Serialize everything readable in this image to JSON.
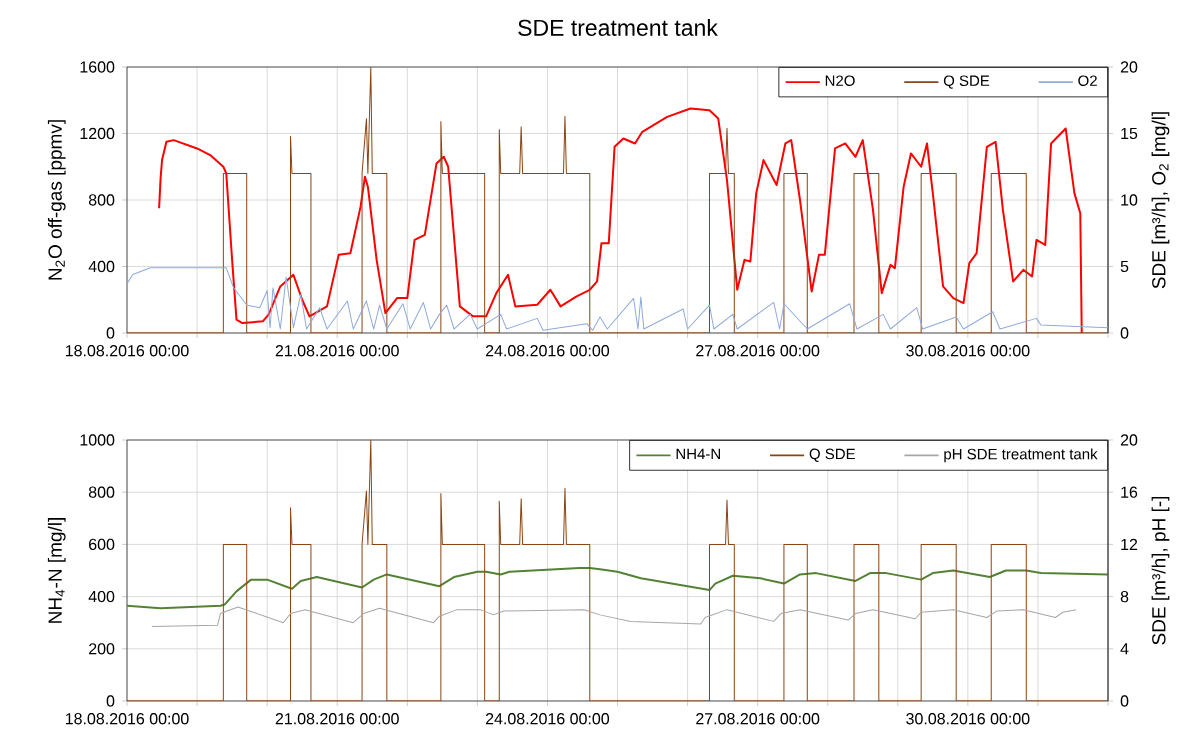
{
  "chart_data": [
    {
      "type": "line",
      "title": "SDE treatment tank",
      "ylabel": "N$_{2}$O off-gas [ppmv]",
      "y2label": "SDE [m³/h], O$_{2}$ [mg/l]",
      "xlim": [
        "2016-08-18T00:00",
        "2016-09-01T00:00"
      ],
      "xticks": [
        {
          "value": "2016-08-18T00:00",
          "label": "18.08.2016 00:00"
        },
        {
          "value": "2016-08-19T00:00",
          "label": null
        },
        {
          "value": "2016-08-20T00:00",
          "label": null
        },
        {
          "value": "2016-08-21T00:00",
          "label": "21.08.2016 00:00"
        },
        {
          "value": "2016-08-22T00:00",
          "label": null
        },
        {
          "value": "2016-08-23T00:00",
          "label": null
        },
        {
          "value": "2016-08-24T00:00",
          "label": "24.08.2016 00:00"
        },
        {
          "value": "2016-08-25T00:00",
          "label": null
        },
        {
          "value": "2016-08-26T00:00",
          "label": null
        },
        {
          "value": "2016-08-27T00:00",
          "label": "27.08.2016 00:00"
        },
        {
          "value": "2016-08-28T00:00",
          "label": null
        },
        {
          "value": "2016-08-29T00:00",
          "label": null
        },
        {
          "value": "2016-08-30T00:00",
          "label": "30.08.2016 00:00"
        },
        {
          "value": "2016-08-31T00:00",
          "label": null
        },
        {
          "value": "2016-09-01T00:00",
          "label": null
        }
      ],
      "ylim": [
        0,
        1600
      ],
      "yticks": [
        0,
        400,
        800,
        1200,
        1600
      ],
      "y2lim": [
        0,
        20
      ],
      "y2ticks": [
        0,
        5,
        10,
        15,
        20
      ],
      "grid": true,
      "legend": "top right",
      "series": [
        {
          "name": "N2O",
          "color": "#ff0000",
          "x": [
            "2016-08-18T11:00",
            "2016-08-18T11:30",
            "2016-08-18T12:00",
            "2016-08-18T13:30",
            "2016-08-18T16:00",
            "2016-08-19T00:00",
            "2016-08-19T04:30",
            "2016-08-19T09:00",
            "2016-08-19T10:00",
            "2016-08-19T12:00",
            "2016-08-19T13:30",
            "2016-08-19T15:30",
            "2016-08-19T22:30",
            "2016-08-20T00:30",
            "2016-08-20T04:30",
            "2016-08-20T09:00",
            "2016-08-20T12:00",
            "2016-08-20T14:30",
            "2016-08-20T20:30",
            "2016-08-21T00:30",
            "2016-08-21T04:30",
            "2016-08-21T08:00",
            "2016-08-21T09:30",
            "2016-08-21T10:30",
            "2016-08-21T13:30",
            "2016-08-21T16:30",
            "2016-08-21T20:30",
            "2016-08-22T00:00",
            "2016-08-22T02:30",
            "2016-08-22T06:00",
            "2016-08-22T10:00",
            "2016-08-22T12:30",
            "2016-08-22T14:00",
            "2016-08-22T18:00",
            "2016-08-22T22:30",
            "2016-08-23T03:00",
            "2016-08-23T06:30",
            "2016-08-23T10:30",
            "2016-08-23T13:00",
            "2016-08-23T20:30",
            "2016-08-24T01:00",
            "2016-08-24T04:30",
            "2016-08-24T10:00",
            "2016-08-24T14:30",
            "2016-08-24T17:00",
            "2016-08-24T18:30",
            "2016-08-24T21:00",
            "2016-08-24T23:00",
            "2016-08-25T02:00",
            "2016-08-25T06:00",
            "2016-08-25T08:30",
            "2016-08-25T17:00",
            "2016-08-26T01:00",
            "2016-08-26T07:30",
            "2016-08-26T10:30",
            "2016-08-26T13:30",
            "2016-08-26T17:00",
            "2016-08-26T19:30",
            "2016-08-26T21:30",
            "2016-08-26T23:30",
            "2016-08-27T02:00",
            "2016-08-27T06:30",
            "2016-08-27T09:30",
            "2016-08-27T11:30",
            "2016-08-27T14:30",
            "2016-08-27T18:30",
            "2016-08-27T21:00",
            "2016-08-27T23:00",
            "2016-08-28T02:30",
            "2016-08-28T06:00",
            "2016-08-28T09:30",
            "2016-08-28T12:00",
            "2016-08-28T15:30",
            "2016-08-28T18:30",
            "2016-08-28T21:30",
            "2016-08-28T23:00",
            "2016-08-29T02:00",
            "2016-08-29T04:30",
            "2016-08-29T08:00",
            "2016-08-29T10:00",
            "2016-08-29T12:00",
            "2016-08-29T15:30",
            "2016-08-29T19:00",
            "2016-08-29T22:30",
            "2016-08-30T00:30",
            "2016-08-30T03:00",
            "2016-08-30T06:30",
            "2016-08-30T09:30",
            "2016-08-30T12:00",
            "2016-08-30T15:30",
            "2016-08-30T19:00",
            "2016-08-30T22:00",
            "2016-08-30T23:30",
            "2016-08-31T02:30",
            "2016-08-31T04:30",
            "2016-08-31T09:30",
            "2016-08-31T12:30",
            "2016-08-31T14:30",
            "2016-08-31T15:00"
          ],
          "values": [
            750,
            930,
            1040,
            1150,
            1160,
            1110,
            1070,
            1000,
            960,
            440,
            80,
            60,
            70,
            110,
            280,
            350,
            200,
            100,
            160,
            470,
            480,
            760,
            940,
            880,
            440,
            120,
            210,
            210,
            560,
            590,
            1020,
            1060,
            1000,
            160,
            100,
            100,
            240,
            350,
            160,
            170,
            260,
            160,
            220,
            260,
            310,
            540,
            540,
            1120,
            1170,
            1140,
            1210,
            1300,
            1350,
            1340,
            1290,
            920,
            260,
            440,
            430,
            840,
            1040,
            890,
            1140,
            1160,
            800,
            250,
            470,
            470,
            1110,
            1140,
            1060,
            1160,
            740,
            240,
            410,
            390,
            880,
            1080,
            1000,
            1140,
            840,
            280,
            210,
            180,
            420,
            480,
            1120,
            1150,
            740,
            310,
            380,
            340,
            560,
            530,
            1140,
            1230,
            840,
            720,
            0
          ]
        },
        {
          "name": "Q SDE",
          "color": "#8b4513",
          "axis": "y2",
          "x": [
            "2016-08-18T00:00",
            "2016-08-19T09:00",
            "2016-08-19T09:00",
            "2016-08-19T17:00",
            "2016-08-19T17:00",
            "2016-08-20T08:00",
            "2016-08-20T08:00",
            "2016-08-20T08:30",
            "2016-08-20T15:00",
            "2016-08-20T15:00",
            "2016-08-21T08:30",
            "2016-08-21T08:30",
            "2016-08-21T10:00",
            "2016-08-21T10:30",
            "2016-08-21T11:30",
            "2016-08-21T12:00",
            "2016-08-21T17:00",
            "2016-08-21T17:00",
            "2016-08-22T11:30",
            "2016-08-22T11:30",
            "2016-08-22T12:00",
            "2016-08-23T02:30",
            "2016-08-23T02:30",
            "2016-08-23T07:30",
            "2016-08-23T07:30",
            "2016-08-23T08:00",
            "2016-08-23T14:30",
            "2016-08-23T15:00",
            "2016-08-23T15:30",
            "2016-08-24T05:30",
            "2016-08-24T06:00",
            "2016-08-24T06:30",
            "2016-08-24T14:30",
            "2016-08-24T14:30",
            "2016-08-26T07:30",
            "2016-08-26T07:30",
            "2016-08-26T13:00",
            "2016-08-26T13:30",
            "2016-08-26T14:00",
            "2016-08-26T16:00",
            "2016-08-26T16:00",
            "2016-08-27T09:00",
            "2016-08-27T09:00",
            "2016-08-27T17:00",
            "2016-08-27T17:00",
            "2016-08-28T09:00",
            "2016-08-28T09:00",
            "2016-08-28T17:30",
            "2016-08-28T17:30",
            "2016-08-29T08:00",
            "2016-08-29T08:00",
            "2016-08-29T20:00",
            "2016-08-29T20:00",
            "2016-08-30T08:00",
            "2016-08-30T08:00",
            "2016-08-30T20:00",
            "2016-08-30T20:00",
            "2016-09-01T00:00"
          ],
          "values": [
            0,
            0,
            12,
            12,
            0,
            0,
            14.8,
            12,
            12,
            0,
            0,
            12,
            16.1,
            12,
            20,
            12,
            12,
            0,
            0,
            15.9,
            12,
            12,
            0,
            0,
            15.3,
            12,
            12,
            15.5,
            12,
            12,
            16.3,
            12,
            12,
            0,
            0,
            12,
            12,
            15.4,
            12,
            12,
            0,
            0,
            12,
            12,
            0,
            0,
            12,
            12,
            0,
            0,
            12,
            12,
            0,
            0,
            12,
            12,
            0,
            0
          ]
        },
        {
          "name": "O2",
          "color": "#8eaadb",
          "axis": "y2",
          "x": [
            "2016-08-18T00:00",
            "2016-08-18T02:00",
            "2016-08-18T08:00",
            "2016-08-19T10:00",
            "2016-08-19T12:30",
            "2016-08-19T17:00",
            "2016-08-19T21:30",
            "2016-08-20T00:00",
            "2016-08-20T01:00",
            "2016-08-20T02:00",
            "2016-08-20T04:30",
            "2016-08-20T06:30",
            "2016-08-20T09:00",
            "2016-08-20T11:30",
            "2016-08-20T13:30",
            "2016-08-20T18:00",
            "2016-08-20T20:30",
            "2016-08-21T03:30",
            "2016-08-21T05:30",
            "2016-08-21T10:00",
            "2016-08-21T12:30",
            "2016-08-21T14:30",
            "2016-08-21T17:00",
            "2016-08-21T22:30",
            "2016-08-22T01:00",
            "2016-08-22T05:30",
            "2016-08-22T08:00",
            "2016-08-22T11:00",
            "2016-08-22T13:30",
            "2016-08-22T16:00",
            "2016-08-22T21:30",
            "2016-08-23T00:00",
            "2016-08-23T08:00",
            "2016-08-23T10:00",
            "2016-08-23T20:30",
            "2016-08-23T22:30",
            "2016-08-24T13:30",
            "2016-08-24T15:30",
            "2016-08-24T18:00",
            "2016-08-24T20:30",
            "2016-08-25T05:30",
            "2016-08-25T07:00",
            "2016-08-25T08:00",
            "2016-08-25T09:00",
            "2016-08-25T22:30",
            "2016-08-26T00:00",
            "2016-08-26T07:30",
            "2016-08-26T09:00",
            "2016-08-26T15:30",
            "2016-08-26T17:00",
            "2016-08-27T05:30",
            "2016-08-27T07:30",
            "2016-08-27T09:00",
            "2016-08-27T17:00",
            "2016-08-28T07:30",
            "2016-08-28T10:00",
            "2016-08-28T19:00",
            "2016-08-28T21:30",
            "2016-08-29T06:30",
            "2016-08-29T08:30",
            "2016-08-29T20:00",
            "2016-08-29T22:30",
            "2016-08-30T08:30",
            "2016-08-30T11:00",
            "2016-08-30T23:30",
            "2016-08-31T01:00",
            "2016-09-01T00:00"
          ],
          "values": [
            3.7,
            4.4,
            4.9,
            4.9,
            3.4,
            2.1,
            1.9,
            3.2,
            0.4,
            3.4,
            0.3,
            4.2,
            0.4,
            2.9,
            0.3,
            1.9,
            0.3,
            2.4,
            0.3,
            2.4,
            0.3,
            2.1,
            0.3,
            2.2,
            0.3,
            2.3,
            0.3,
            1.4,
            2.1,
            0.3,
            1.4,
            0.3,
            1.4,
            0.3,
            1.1,
            0.2,
            0.7,
            0.2,
            1.2,
            0.3,
            2.6,
            0.3,
            2.7,
            0.3,
            1.8,
            0.3,
            2.1,
            0.3,
            1.4,
            0.3,
            2.3,
            0.3,
            2.2,
            0.3,
            2.2,
            0.3,
            1.4,
            0.3,
            1.9,
            0.3,
            1.2,
            0.3,
            1.6,
            0.3,
            1.1,
            0.6,
            0.4
          ]
        }
      ]
    },
    {
      "type": "line",
      "ylabel": "NH$_{4}$-N [mg/l]",
      "y2label": "SDE [m³/h], pH [-]",
      "xlim": [
        "2016-08-18T00:00",
        "2016-09-01T00:00"
      ],
      "xticks": [
        {
          "value": "2016-08-18T00:00",
          "label": "18.08.2016 00:00"
        },
        {
          "value": "2016-08-19T00:00",
          "label": null
        },
        {
          "value": "2016-08-20T00:00",
          "label": null
        },
        {
          "value": "2016-08-21T00:00",
          "label": "21.08.2016 00:00"
        },
        {
          "value": "2016-08-22T00:00",
          "label": null
        },
        {
          "value": "2016-08-23T00:00",
          "label": null
        },
        {
          "value": "2016-08-24T00:00",
          "label": "24.08.2016 00:00"
        },
        {
          "value": "2016-08-25T00:00",
          "label": null
        },
        {
          "value": "2016-08-26T00:00",
          "label": null
        },
        {
          "value": "2016-08-27T00:00",
          "label": "27.08.2016 00:00"
        },
        {
          "value": "2016-08-28T00:00",
          "label": null
        },
        {
          "value": "2016-08-29T00:00",
          "label": null
        },
        {
          "value": "2016-08-30T00:00",
          "label": "30.08.2016 00:00"
        },
        {
          "value": "2016-08-31T00:00",
          "label": null
        },
        {
          "value": "2016-09-01T00:00",
          "label": null
        }
      ],
      "ylim": [
        0,
        1000
      ],
      "yticks": [
        0,
        200,
        400,
        600,
        800,
        1000
      ],
      "y2lim": [
        0,
        20
      ],
      "y2ticks": [
        0,
        4,
        8,
        12,
        16,
        20
      ],
      "grid": true,
      "legend": "top right",
      "series": [
        {
          "name": "NH4-N",
          "color": "#548235",
          "x": [
            "2016-08-18T00:00",
            "2016-08-18T11:30",
            "2016-08-19T08:00",
            "2016-08-19T09:30",
            "2016-08-19T13:30",
            "2016-08-19T18:30",
            "2016-08-20T00:00",
            "2016-08-20T08:30",
            "2016-08-20T11:30",
            "2016-08-20T17:00",
            "2016-08-21T08:30",
            "2016-08-21T12:30",
            "2016-08-21T17:00",
            "2016-08-22T11:00",
            "2016-08-22T16:00",
            "2016-08-23T00:00",
            "2016-08-23T03:00",
            "2016-08-23T08:00",
            "2016-08-23T11:00",
            "2016-08-24T11:00",
            "2016-08-24T14:30",
            "2016-08-24T18:00",
            "2016-08-25T00:00",
            "2016-08-25T08:00",
            "2016-08-26T07:30",
            "2016-08-26T09:30",
            "2016-08-26T15:30",
            "2016-08-27T01:00",
            "2016-08-27T09:00",
            "2016-08-27T14:30",
            "2016-08-27T20:00",
            "2016-08-28T09:30",
            "2016-08-28T14:30",
            "2016-08-28T20:00",
            "2016-08-29T08:00",
            "2016-08-29T12:00",
            "2016-08-29T19:00",
            "2016-08-30T07:30",
            "2016-08-30T13:00",
            "2016-08-30T20:00",
            "2016-08-31T01:00",
            "2016-09-01T00:00"
          ],
          "values": [
            365,
            355,
            365,
            370,
            420,
            465,
            465,
            430,
            460,
            475,
            435,
            465,
            485,
            440,
            475,
            495,
            495,
            485,
            495,
            510,
            510,
            505,
            495,
            470,
            425,
            450,
            480,
            470,
            450,
            485,
            490,
            460,
            490,
            490,
            465,
            490,
            500,
            475,
            500,
            500,
            490,
            485
          ]
        },
        {
          "name": "Q SDE",
          "color": "#8b4513",
          "axis": "y2",
          "x": [
            "2016-08-18T00:00",
            "2016-08-19T09:00",
            "2016-08-19T09:00",
            "2016-08-19T17:00",
            "2016-08-19T17:00",
            "2016-08-20T08:00",
            "2016-08-20T08:00",
            "2016-08-20T08:30",
            "2016-08-20T15:00",
            "2016-08-20T15:00",
            "2016-08-21T08:30",
            "2016-08-21T08:30",
            "2016-08-21T10:00",
            "2016-08-21T10:30",
            "2016-08-21T11:30",
            "2016-08-21T12:00",
            "2016-08-21T17:00",
            "2016-08-21T17:00",
            "2016-08-22T11:30",
            "2016-08-22T11:30",
            "2016-08-22T12:00",
            "2016-08-23T02:30",
            "2016-08-23T02:30",
            "2016-08-23T07:30",
            "2016-08-23T07:30",
            "2016-08-23T08:00",
            "2016-08-23T14:30",
            "2016-08-23T15:00",
            "2016-08-23T15:30",
            "2016-08-24T05:30",
            "2016-08-24T06:00",
            "2016-08-24T06:30",
            "2016-08-24T14:30",
            "2016-08-24T14:30",
            "2016-08-26T07:30",
            "2016-08-26T07:30",
            "2016-08-26T13:00",
            "2016-08-26T13:30",
            "2016-08-26T14:00",
            "2016-08-26T16:00",
            "2016-08-26T16:00",
            "2016-08-27T09:00",
            "2016-08-27T09:00",
            "2016-08-27T17:00",
            "2016-08-27T17:00",
            "2016-08-28T09:00",
            "2016-08-28T09:00",
            "2016-08-28T17:30",
            "2016-08-28T17:30",
            "2016-08-29T08:00",
            "2016-08-29T08:00",
            "2016-08-29T20:00",
            "2016-08-29T20:00",
            "2016-08-30T08:00",
            "2016-08-30T08:00",
            "2016-08-30T20:00",
            "2016-08-30T20:00",
            "2016-09-01T00:00"
          ],
          "values": [
            0,
            0,
            12,
            12,
            0,
            0,
            14.8,
            12,
            12,
            0,
            0,
            12,
            16.1,
            12,
            20,
            12,
            12,
            0,
            0,
            15.9,
            12,
            12,
            0,
            0,
            15.3,
            12,
            12,
            15.5,
            12,
            12,
            16.3,
            12,
            12,
            0,
            0,
            12,
            12,
            15.4,
            12,
            12,
            0,
            0,
            12,
            12,
            0,
            0,
            12,
            12,
            0,
            0,
            12,
            12,
            0,
            0,
            12,
            12,
            0,
            0
          ]
        },
        {
          "name": "pH SDE treatment tank",
          "color": "#a6a6a6",
          "axis": "y2",
          "x": [
            "2016-08-18T08:30",
            "2016-08-19T07:00",
            "2016-08-19T08:00",
            "2016-08-19T14:00",
            "2016-08-20T05:30",
            "2016-08-20T08:00",
            "2016-08-20T13:00",
            "2016-08-21T05:30",
            "2016-08-21T09:00",
            "2016-08-21T14:30",
            "2016-08-22T09:00",
            "2016-08-22T11:00",
            "2016-08-22T17:00",
            "2016-08-23T01:00",
            "2016-08-23T05:30",
            "2016-08-23T09:00",
            "2016-08-24T12:30",
            "2016-08-24T18:00",
            "2016-08-25T04:30",
            "2016-08-26T04:30",
            "2016-08-26T06:00",
            "2016-08-26T13:30",
            "2016-08-27T05:30",
            "2016-08-27T08:00",
            "2016-08-27T14:30",
            "2016-08-28T07:00",
            "2016-08-28T09:30",
            "2016-08-28T15:30",
            "2016-08-29T06:00",
            "2016-08-29T08:00",
            "2016-08-29T19:00",
            "2016-08-30T06:30",
            "2016-08-30T10:00",
            "2016-08-30T19:00",
            "2016-08-31T06:00",
            "2016-08-31T08:30",
            "2016-08-31T13:00"
          ],
          "values": [
            5.7,
            5.8,
            6.7,
            7.2,
            6.0,
            6.7,
            7.0,
            6.0,
            6.7,
            7.1,
            6.0,
            6.5,
            7.0,
            7.0,
            6.6,
            6.9,
            7.0,
            6.6,
            6.1,
            5.9,
            6.4,
            7.0,
            6.1,
            6.7,
            7.0,
            6.2,
            6.7,
            7.0,
            6.3,
            6.8,
            7.0,
            6.4,
            6.9,
            7.0,
            6.4,
            6.8,
            7.0
          ]
        }
      ]
    }
  ]
}
